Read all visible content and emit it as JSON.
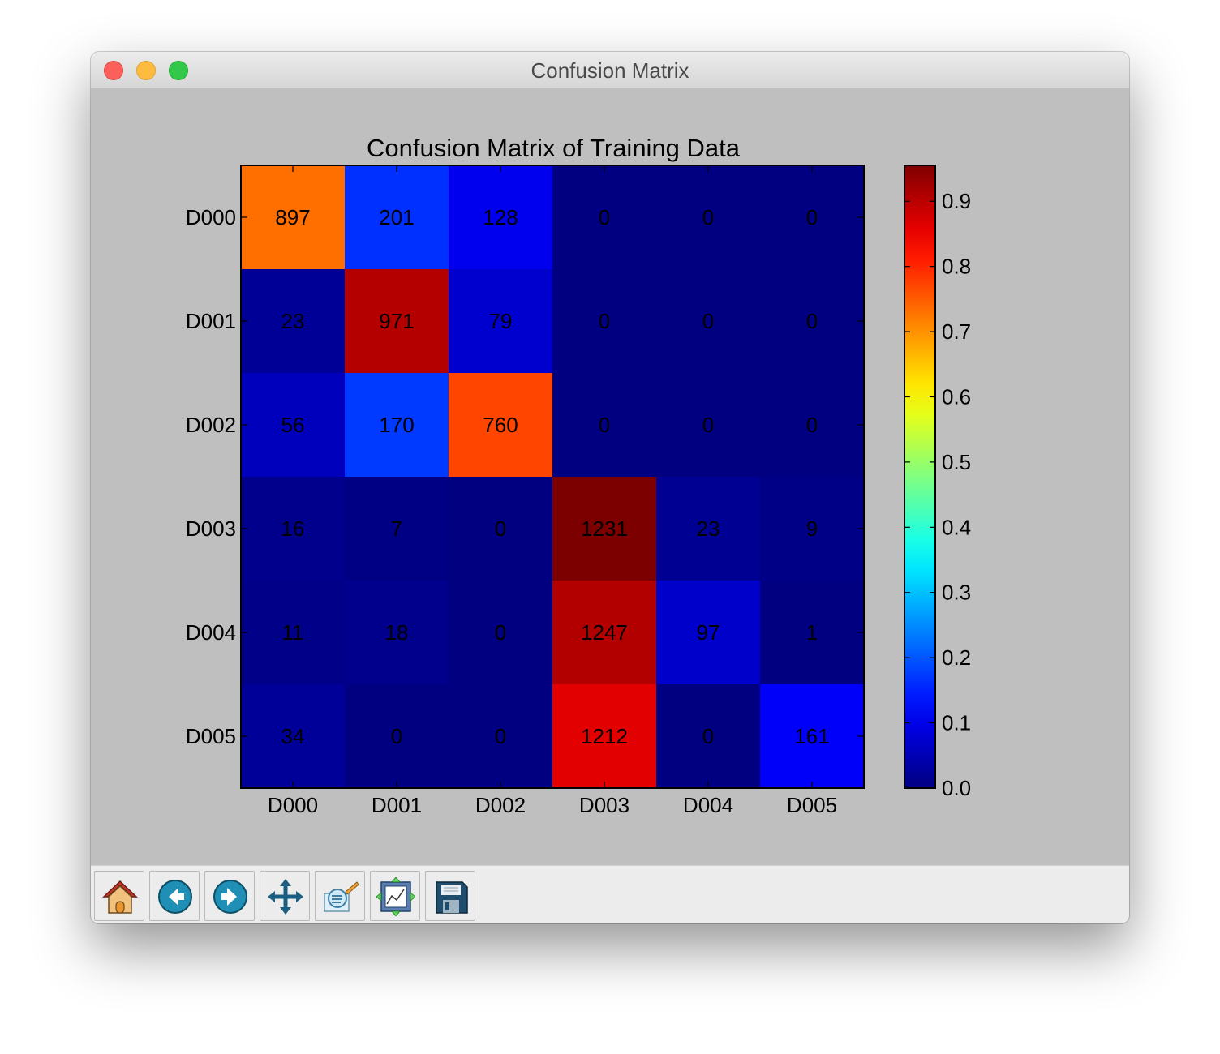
{
  "window": {
    "title": "Confusion Matrix"
  },
  "toolbar": {
    "buttons": [
      {
        "name": "home-button",
        "icon": "home-icon"
      },
      {
        "name": "back-button",
        "icon": "back-arrow-icon"
      },
      {
        "name": "forward-button",
        "icon": "forward-arrow-icon"
      },
      {
        "name": "pan-button",
        "icon": "move-icon"
      },
      {
        "name": "zoom-button",
        "icon": "zoom-rect-icon"
      },
      {
        "name": "subplots-button",
        "icon": "subplots-icon"
      },
      {
        "name": "save-button",
        "icon": "save-icon"
      }
    ]
  },
  "chart_data": {
    "type": "heatmap",
    "title": "Confusion Matrix of Training Data",
    "xlabel": "",
    "ylabel": "",
    "row_labels": [
      "D000",
      "D001",
      "D002",
      "D003",
      "D004",
      "D005"
    ],
    "col_labels": [
      "D000",
      "D001",
      "D002",
      "D003",
      "D004",
      "D005"
    ],
    "values": [
      [
        897,
        201,
        128,
        0,
        0,
        0
      ],
      [
        23,
        971,
        79,
        0,
        0,
        0
      ],
      [
        56,
        170,
        760,
        0,
        0,
        0
      ],
      [
        16,
        7,
        0,
        1231,
        23,
        9
      ],
      [
        11,
        18,
        0,
        1247,
        97,
        1
      ],
      [
        34,
        0,
        0,
        1212,
        0,
        161
      ]
    ],
    "normalization": "row",
    "colormap": "jet",
    "colorbar": {
      "min": 0.0,
      "max": 0.955,
      "ticks": [
        0.0,
        0.1,
        0.2,
        0.3,
        0.4,
        0.5,
        0.6,
        0.7,
        0.8,
        0.9
      ],
      "tick_labels": [
        "0.0",
        "0.1",
        "0.2",
        "0.3",
        "0.4",
        "0.5",
        "0.6",
        "0.7",
        "0.8",
        "0.9"
      ]
    },
    "grid": false
  }
}
